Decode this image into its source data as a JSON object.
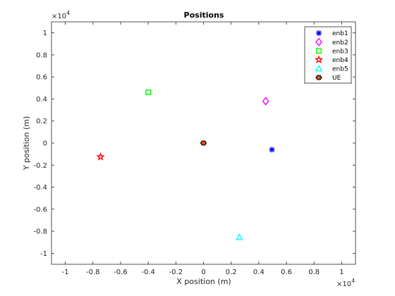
{
  "chart_data": {
    "type": "scatter",
    "title": "Positions",
    "xlabel": "X position (m)",
    "ylabel": "Y position (m)",
    "x_exponent_base": "×10",
    "x_exponent_power": "4",
    "y_exponent_base": "×10",
    "y_exponent_power": "4",
    "xlim": [
      -11000,
      11000
    ],
    "ylim": [
      -11000,
      11000
    ],
    "xticks": [
      -1,
      -0.8,
      -0.6,
      -0.4,
      -0.2,
      0,
      0.2,
      0.4,
      0.6,
      0.8,
      1
    ],
    "yticks": [
      -1,
      -0.8,
      -0.6,
      -0.4,
      -0.2,
      0,
      0.2,
      0.4,
      0.6,
      0.8,
      1
    ],
    "xtick_labels": [
      "-1",
      "-0.8",
      "-0.6",
      "-0.4",
      "-0.2",
      "0",
      "0.2",
      "0.4",
      "0.6",
      "0.8",
      "1"
    ],
    "ytick_labels": [
      "-1",
      "-0.8",
      "-0.6",
      "-0.4",
      "-0.2",
      "0",
      "0.2",
      "0.4",
      "0.6",
      "0.8",
      "1"
    ],
    "tick_scale": 10000,
    "grid": false,
    "legend_position": "top-right",
    "series": [
      {
        "name": "enb1",
        "marker": "asterisk",
        "color": "#0000ff",
        "x": [
          4950
        ],
        "y": [
          -600
        ]
      },
      {
        "name": "enb2",
        "marker": "diamond",
        "color": "#ff00ff",
        "x": [
          4500
        ],
        "y": [
          3800
        ]
      },
      {
        "name": "enb3",
        "marker": "square",
        "color": "#00ff00",
        "x": [
          -4000
        ],
        "y": [
          4600
        ]
      },
      {
        "name": "enb4",
        "marker": "pentagram",
        "color": "#ff0000",
        "x": [
          -7450
        ],
        "y": [
          -1250
        ]
      },
      {
        "name": "enb5",
        "marker": "triangle",
        "color": "#00ffff",
        "x": [
          2600
        ],
        "y": [
          -8550
        ]
      },
      {
        "name": "UE",
        "marker": "hexagon",
        "color": "#d95319",
        "x": [
          0
        ],
        "y": [
          0
        ]
      }
    ]
  }
}
